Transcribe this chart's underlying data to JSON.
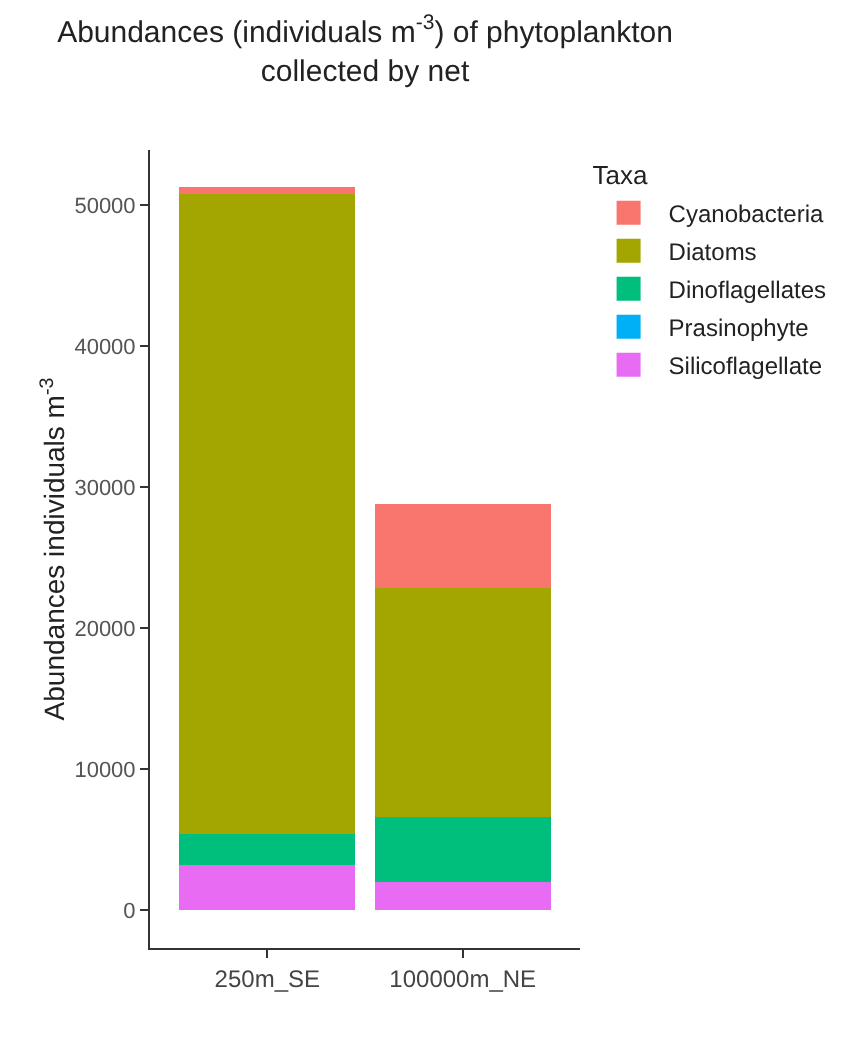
{
  "chart_data": {
    "type": "bar",
    "title": "Abundances (individuals m$^{-3}$) of phytoplankton collected by net",
    "ylabel": "Abundances individuals m$^{-3}$",
    "legend_title": "Taxa",
    "categories": [
      "250m_SE",
      "100000m_NE"
    ],
    "stacked": true,
    "ylim": [
      -2700,
      53900
    ],
    "yticks": [
      0,
      10000,
      20000,
      30000,
      40000,
      50000
    ],
    "grid": false,
    "legend": "right",
    "series": [
      {
        "name": "Silicoflagellate",
        "color": "#e76bf3",
        "values": [
          3200,
          2000
        ]
      },
      {
        "name": "Prasinophyte",
        "color": "#00b0f6",
        "values": [
          0,
          0
        ]
      },
      {
        "name": "Dinoflagellates",
        "color": "#00bf7d",
        "values": [
          2200,
          4600
        ]
      },
      {
        "name": "Diatoms",
        "color": "#a3a500",
        "values": [
          45400,
          16200
        ]
      },
      {
        "name": "Cyanobacteria",
        "color": "#f8766d",
        "values": [
          500,
          6000
        ]
      }
    ]
  }
}
